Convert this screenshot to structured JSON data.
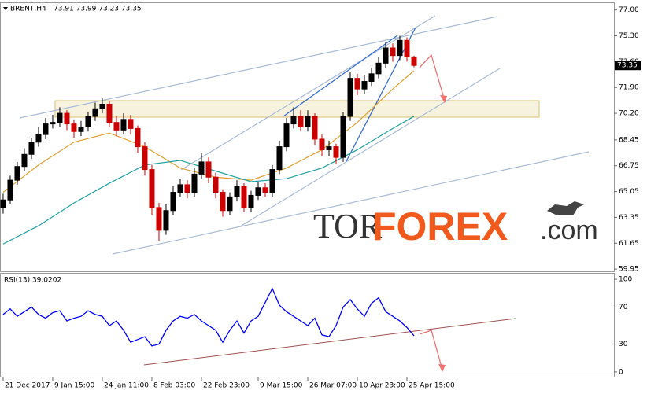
{
  "chart_data": [
    {
      "type": "candlestick",
      "title": "BRENT,H4",
      "subtitle": "73.91 73.99 73.23 73.35",
      "x": [
        0,
        1,
        2,
        3,
        4,
        5,
        6,
        7,
        8,
        9,
        10,
        11,
        12,
        13,
        14,
        15,
        16,
        17,
        18,
        19,
        20,
        21,
        22,
        23,
        24,
        25,
        26,
        27,
        28,
        29,
        30,
        31,
        32,
        33,
        34,
        35,
        36,
        37,
        38,
        39,
        40,
        41,
        42,
        43,
        44,
        45,
        46,
        47,
        48,
        49,
        50,
        51,
        52,
        53,
        54,
        55,
        56,
        57,
        58
      ],
      "open": [
        64.0,
        64.5,
        65.8,
        66.7,
        67.5,
        68.3,
        68.8,
        69.5,
        69.6,
        70.2,
        69.5,
        69.0,
        69.3,
        70.0,
        70.5,
        70.8,
        69.6,
        69.1,
        69.8,
        69.2,
        68.0,
        66.5,
        64.0,
        62.5,
        63.8,
        65.0,
        65.5,
        65.0,
        66.2,
        67.0,
        66.0,
        65.0,
        63.8,
        64.7,
        65.4,
        64.0,
        64.8,
        65.3,
        65.0,
        66.5,
        68.0,
        69.5,
        70.0,
        69.3,
        70.0,
        68.5,
        67.8,
        68.0,
        67.3,
        70.0,
        72.5,
        71.8,
        72.3,
        72.8,
        73.5,
        74.5,
        74.0,
        75.0,
        73.91
      ],
      "high": [
        64.9,
        66.1,
        67.0,
        67.9,
        68.6,
        69.3,
        69.9,
        70.1,
        70.6,
        70.4,
        69.8,
        69.7,
        70.3,
        70.9,
        71.2,
        71.0,
        70.0,
        70.2,
        70.1,
        69.4,
        68.3,
        66.8,
        64.3,
        64.2,
        65.4,
        65.9,
        65.8,
        66.6,
        67.6,
        67.3,
        66.3,
        65.2,
        65.0,
        65.8,
        65.6,
        65.1,
        65.7,
        65.6,
        66.8,
        68.4,
        69.9,
        70.6,
        70.4,
        70.4,
        70.2,
        68.8,
        68.4,
        68.2,
        70.3,
        72.9,
        72.8,
        72.7,
        73.2,
        73.9,
        74.9,
        74.8,
        75.3,
        75.2,
        73.99
      ],
      "low": [
        63.6,
        64.2,
        65.5,
        66.4,
        67.2,
        68.0,
        68.5,
        69.2,
        69.3,
        69.1,
        68.6,
        68.7,
        69.0,
        69.7,
        70.2,
        69.3,
        68.7,
        68.8,
        68.8,
        67.6,
        66.1,
        63.5,
        61.8,
        62.2,
        63.5,
        64.7,
        64.6,
        64.7,
        65.9,
        65.6,
        64.6,
        63.4,
        63.5,
        64.4,
        63.7,
        63.7,
        64.5,
        64.7,
        64.7,
        66.2,
        67.7,
        69.2,
        69.0,
        69.0,
        68.1,
        67.4,
        67.4,
        66.9,
        67.0,
        69.7,
        71.4,
        71.5,
        72.0,
        72.5,
        73.2,
        73.6,
        73.7,
        73.6,
        73.23
      ],
      "close": [
        64.5,
        65.8,
        66.7,
        67.5,
        68.3,
        68.8,
        69.5,
        69.6,
        70.2,
        69.5,
        69.0,
        69.3,
        70.0,
        70.5,
        70.8,
        69.6,
        69.1,
        69.8,
        69.2,
        68.0,
        66.5,
        64.0,
        62.5,
        63.8,
        65.0,
        65.5,
        65.0,
        66.2,
        67.0,
        66.0,
        65.0,
        63.8,
        64.7,
        65.4,
        64.0,
        64.8,
        65.3,
        65.0,
        66.5,
        68.0,
        69.5,
        70.0,
        69.3,
        70.0,
        68.5,
        67.8,
        68.0,
        67.3,
        70.0,
        72.5,
        71.8,
        72.3,
        72.8,
        73.5,
        74.5,
        74.0,
        75.0,
        73.91,
        73.35
      ],
      "up_color": "#000000",
      "down_color": "#cc0000",
      "overlays": [
        {
          "color": "#e0a030",
          "x": [
            0,
            5,
            10,
            15,
            20,
            25,
            30,
            35,
            40,
            45,
            50,
            55,
            58
          ],
          "values": [
            65.0,
            66.8,
            68.3,
            68.9,
            68.0,
            66.6,
            66.0,
            65.8,
            66.6,
            67.8,
            69.6,
            71.8,
            73.0
          ]
        },
        {
          "color": "#20a0a0",
          "x": [
            0,
            5,
            10,
            15,
            20,
            25,
            30,
            35,
            40,
            45,
            50,
            55,
            58
          ],
          "values": [
            61.6,
            62.8,
            64.3,
            65.6,
            66.8,
            67.1,
            66.4,
            65.7,
            65.9,
            66.6,
            67.8,
            69.2,
            70.0
          ]
        }
      ],
      "last_price": 73.35,
      "xlim": [
        -0.44,
        86.22
      ],
      "ylim": [
        59.75,
        77.45
      ],
      "yticks": [
        {
          "value": 77,
          "label": "77.00"
        },
        {
          "value": 75.3,
          "label": "75.30"
        },
        {
          "value": 73.6,
          "label": "73.60"
        },
        {
          "value": 71.9,
          "label": "71.90"
        },
        {
          "value": 70.2,
          "label": "70.20"
        },
        68.45,
        66.75,
        65.05,
        63.35,
        61.65,
        59.95
      ],
      "watermark": [
        "TOR",
        "FOREX",
        ".com"
      ]
    },
    {
      "type": "line",
      "title": "RSI(13) 39.0202",
      "color": "#0000ff",
      "x": [
        0,
        1,
        2,
        3,
        4,
        5,
        6,
        7,
        8,
        9,
        10,
        11,
        12,
        13,
        14,
        15,
        16,
        17,
        18,
        19,
        20,
        21,
        22,
        23,
        24,
        25,
        26,
        27,
        28,
        29,
        30,
        31,
        32,
        33,
        34,
        35,
        36,
        37,
        38,
        39,
        40,
        41,
        42,
        43,
        44,
        45,
        46,
        47,
        48,
        49,
        50,
        51,
        52,
        53,
        54,
        55,
        56,
        57,
        58
      ],
      "values": [
        62,
        68,
        60,
        65,
        70,
        62,
        58,
        64,
        66,
        55,
        58,
        60,
        66,
        62,
        60,
        50,
        55,
        45,
        32,
        35,
        38,
        28,
        30,
        45,
        55,
        60,
        58,
        62,
        55,
        50,
        45,
        32,
        45,
        55,
        42,
        55,
        60,
        75,
        90,
        72,
        65,
        60,
        55,
        50,
        58,
        40,
        38,
        50,
        70,
        78,
        68,
        60,
        74,
        80,
        65,
        60,
        55,
        48,
        39
      ],
      "xlim": [
        -0.44,
        86.22
      ],
      "ylim": [
        -6,
        106
      ],
      "yticks": [
        0,
        30,
        70,
        100
      ],
      "xticks": [
        {
          "value": 0,
          "label": "21 Dec 2017"
        },
        {
          "value": 7,
          "label": "9 Jan 15:00"
        },
        {
          "value": 14,
          "label": "24 Jan 11:00"
        },
        {
          "value": 21,
          "label": "8 Feb 03:00"
        },
        {
          "value": 28,
          "label": "22 Feb 23:00"
        },
        {
          "value": 36,
          "label": "9 Mar 15:00"
        },
        {
          "value": 43,
          "label": "26 Mar 07:00"
        },
        {
          "value": 50,
          "label": "10 Apr 23:00"
        },
        {
          "value": 57,
          "label": "25 Apr 15:00"
        }
      ]
    }
  ]
}
